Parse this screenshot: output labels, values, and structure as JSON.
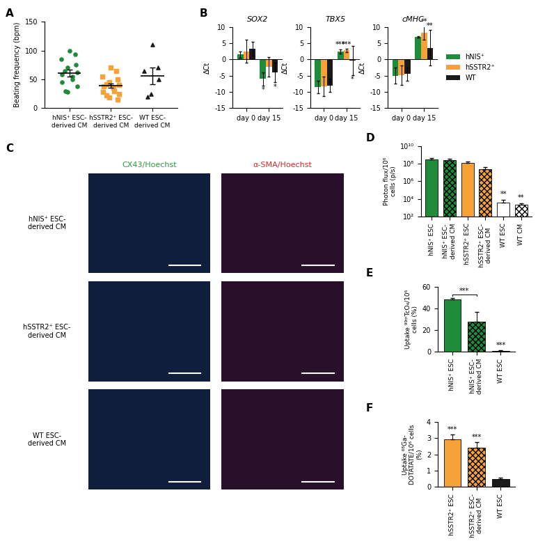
{
  "chart_data": [
    {
      "panel": "A",
      "type": "scatter",
      "ylabel": "Beating frequency (bpm)",
      "ylim": [
        0,
        150
      ],
      "yticks": [
        0,
        50,
        100,
        150
      ],
      "series": [
        {
          "name": "hNIS⁺ ESC-derived CM",
          "color": "#1e8c3a",
          "marker": "circle",
          "values": [
            100,
            93,
            85,
            75,
            70,
            65,
            62,
            58,
            55,
            50,
            45,
            38,
            30,
            28
          ],
          "mean": 61,
          "sem": 6
        },
        {
          "name": "hSSTR2⁺ ESC-derived CM",
          "color": "#f7a239",
          "marker": "square",
          "values": [
            70,
            65,
            55,
            50,
            45,
            42,
            40,
            38,
            35,
            30,
            28,
            25,
            22,
            18,
            15
          ],
          "mean": 39,
          "sem": 4
        },
        {
          "name": "WT ESC-derived CM",
          "color": "#1a1a1a",
          "marker": "triangle",
          "values": [
            110,
            70,
            65,
            50,
            25,
            20
          ],
          "mean": 56,
          "sem": 14
        }
      ]
    },
    {
      "panel": "B",
      "type": "bar",
      "title": "SOX2",
      "ylabel": "ΔCt",
      "categories": [
        "day 0",
        "day 15"
      ],
      "ylim": [
        -15,
        10
      ],
      "yticks": [
        -15,
        -10,
        -5,
        0,
        5,
        10
      ],
      "series": [
        {
          "name": "hNIS⁺",
          "color": "#1e8c3a",
          "values": [
            1.5,
            -6
          ],
          "errors": [
            1,
            2
          ]
        },
        {
          "name": "hSSTR2⁺",
          "color": "#f7a239",
          "values": [
            2.5,
            -2.2
          ],
          "errors": [
            3.5,
            3
          ]
        },
        {
          "name": "WT",
          "color": "#1a1a1a",
          "values": [
            3.3,
            -4
          ],
          "errors": [
            2.2,
            3
          ]
        }
      ],
      "annotations": [
        {
          "text": "*",
          "series": "hNIS⁺",
          "category": "day 15"
        },
        {
          "text": "*",
          "series": "WT",
          "category": "day 15"
        }
      ]
    },
    {
      "type": "bar",
      "title": "TBX5",
      "ylabel": "ΔCt",
      "categories": [
        "day 0",
        "day 15"
      ],
      "ylim": [
        -15,
        10
      ],
      "yticks": [
        -15,
        -10,
        -5,
        0,
        5,
        10
      ],
      "series": [
        {
          "name": "hNIS⁺",
          "color": "#1e8c3a",
          "values": [
            -8.5,
            2.5
          ],
          "errors": [
            2,
            0.7
          ]
        },
        {
          "name": "hSSTR2⁺",
          "color": "#f7a239",
          "values": [
            -8.3,
            2.8
          ],
          "errors": [
            3,
            0.5
          ]
        },
        {
          "name": "WT",
          "color": "#1a1a1a",
          "values": [
            -8,
            -0.3
          ],
          "errors": [
            2,
            4.5
          ]
        }
      ],
      "annotations": [
        {
          "text": "***",
          "series": "hNIS⁺",
          "category": "day 15"
        },
        {
          "text": "***",
          "series": "hSSTR2⁺",
          "category": "day 15"
        },
        {
          "text": "*",
          "series": "WT",
          "category": "day 15"
        }
      ]
    },
    {
      "type": "bar",
      "title": "cMHC",
      "ylabel": "ΔCt",
      "legend": "right",
      "categories": [
        "day 0",
        "day 15"
      ],
      "ylim": [
        -15,
        10
      ],
      "yticks": [
        -15,
        -10,
        -5,
        0,
        5,
        10
      ],
      "series": [
        {
          "name": "hNIS⁺",
          "color": "#1e8c3a",
          "values": [
            -5,
            7
          ],
          "errors": [
            2.5,
            0.2
          ]
        },
        {
          "name": "hSSTR2⁺",
          "color": "#f7a239",
          "values": [
            -4.8,
            8.2
          ],
          "errors": [
            3,
            2.2
          ]
        },
        {
          "name": "WT",
          "color": "#1a1a1a",
          "values": [
            -4.5,
            3.6
          ],
          "errors": [
            2,
            5.5
          ]
        }
      ],
      "annotations": [
        {
          "text": "**",
          "series": "hSSTR2⁺",
          "category": "day 15"
        },
        {
          "text": "**",
          "series": "WT",
          "category": "day 15"
        }
      ]
    },
    {
      "panel": "C",
      "type": "image",
      "columns": [
        "CX43/Hoechst",
        "α-SMA/Hoechst"
      ],
      "rows": [
        "hNIS⁺ ESC-derived CM",
        "hSSTR2⁺ ESC-derived CM",
        "WT ESC-derived CM"
      ]
    },
    {
      "panel": "D",
      "type": "bar",
      "log": "y",
      "ylabel": "Photon flux/10⁶ cells (p/s)",
      "categories": [
        "hNIS⁺ ESC",
        "hNIS⁺ ESC-derived CM",
        "hSSTR2⁺ ESC",
        "hSSTR2⁺ ESC-derived CM",
        "WT ESC",
        "WT CM"
      ],
      "values": [
        300000000,
        250000000,
        120000000,
        25000000,
        4000,
        2000
      ],
      "errors": [
        150000000,
        80000000,
        60000000,
        12000000,
        4000,
        1000
      ],
      "colors": [
        "#1e8c3a",
        "#1e8c3a",
        "#f7a239",
        "#f7a239",
        "#ffffff",
        "#ffffff"
      ],
      "ylim": [
        100,
        10000000000
      ],
      "yticks": [
        {
          "value": 100,
          "label": "10²"
        },
        {
          "value": 10000,
          "label": "10⁴"
        },
        {
          "value": 1000000,
          "label": "10⁶"
        },
        {
          "value": 100000000,
          "label": "10⁸"
        },
        {
          "value": 10000000000,
          "label": "10¹⁰"
        }
      ],
      "annotations": [
        {
          "text": "**",
          "category": "WT ESC"
        },
        {
          "text": "**",
          "category": "WT CM"
        }
      ]
    },
    {
      "panel": "E",
      "type": "bar",
      "ylabel": "Uptake ⁹⁹ᵐTcO₄/10⁶ cells (%)",
      "categories": [
        "hNIS⁺ ESC",
        "hNIS⁺ ESC-derived CM",
        "WT ESC"
      ],
      "values": [
        48,
        27.5,
        0.8
      ],
      "errors": [
        1.5,
        9,
        0.5
      ],
      "colors": [
        "#1e8c3a",
        "#1e8c3a",
        "#1a1a1a"
      ],
      "ylim": [
        0,
        60
      ],
      "yticks": [
        0,
        20,
        40,
        60
      ],
      "annotations": [
        {
          "text": "***",
          "from": "hNIS⁺ ESC",
          "to": "hNIS⁺ ESC-derived CM"
        },
        {
          "text": "***",
          "category": "WT ESC"
        }
      ]
    },
    {
      "panel": "F",
      "type": "bar",
      "ylabel": "Uptake ⁶⁸Ga-DOTATATE/10⁶ cells (%)",
      "categories": [
        "hSSTR2⁺ ESC",
        "hSSTR2⁺ ESC-derived CM",
        "WT ESC"
      ],
      "values": [
        2.95,
        2.4,
        0.5
      ],
      "errors": [
        0.3,
        0.35,
        0.08
      ],
      "colors": [
        "#f7a239",
        "#f7a239",
        "#1a1a1a"
      ],
      "ylim": [
        0,
        4
      ],
      "yticks": [
        0,
        1,
        2,
        3,
        4
      ],
      "annotations": [
        {
          "text": "***",
          "category": "hSSTR2⁺ ESC"
        },
        {
          "text": "***",
          "category": "hSSTR2⁺ ESC-derived CM"
        }
      ]
    }
  ]
}
